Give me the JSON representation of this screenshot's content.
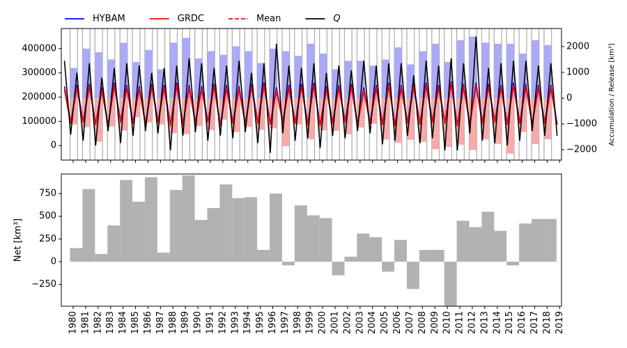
{
  "chart_data": [
    {
      "type": "line",
      "x": [
        1979.3,
        1979.8,
        1980.3,
        1980.8,
        1981.3,
        1981.8,
        1982.3,
        1982.8,
        1983.3,
        1983.8,
        1984.3,
        1984.8,
        1985.3,
        1985.8,
        1986.3,
        1986.8,
        1987.3,
        1987.8,
        1988.3,
        1988.8,
        1989.3,
        1989.8,
        1990.3,
        1990.8,
        1991.3,
        1991.8,
        1992.3,
        1992.8,
        1993.3,
        1993.8,
        1994.3,
        1994.8,
        1995.3,
        1995.8,
        1996.3,
        1996.8,
        1997.3,
        1997.8,
        1998.3,
        1998.8,
        1999.3,
        1999.8,
        2000.3,
        2000.8,
        2001.3,
        2001.8,
        2002.3,
        2002.8,
        2003.3,
        2003.8,
        2004.3,
        2004.8,
        2005.3,
        2005.8,
        2006.3,
        2006.8,
        2007.3,
        2007.8,
        2008.3,
        2008.8,
        2009.3,
        2009.8,
        2010.3,
        2010.8,
        2011.3,
        2011.8,
        2012.3,
        2012.8,
        2013.3,
        2013.8,
        2014.3,
        2014.8,
        2015.3,
        2015.8,
        2016.3,
        2016.8,
        2017.3,
        2017.8,
        2018.3,
        2018.8
      ],
      "xlim": [
        1979.05,
        2019.15
      ],
      "ylim": [
        -60000,
        483000
      ],
      "yticks": [
        0,
        100000,
        200000,
        300000,
        400000
      ],
      "y2lim": [
        -2400,
        2700
      ],
      "y2ticks": [
        {
          "value": -2000,
          "label": "−2000"
        },
        {
          "value": -1000,
          "label": "−1000"
        },
        0,
        1000,
        2000
      ],
      "y2label": "Accumulation / Release [km³]",
      "series": [
        {
          "name": "HYBAM",
          "color": "#0000ff",
          "values": [
            245000,
            95000,
            250000,
            100000,
            255000,
            90000,
            240000,
            85000,
            260000,
            100000,
            250000,
            95000,
            245000,
            90000,
            255000,
            100000,
            250000,
            85000,
            260000,
            90000,
            250000,
            95000,
            245000,
            100000,
            255000,
            85000,
            250000,
            95000,
            245000,
            90000,
            255000,
            95000,
            260000,
            90000,
            240000,
            100000,
            250000,
            95000,
            255000,
            90000,
            260000,
            85000,
            245000,
            95000,
            250000,
            100000,
            255000,
            90000,
            240000,
            95000,
            250000,
            90000,
            260000,
            85000,
            250000,
            95000,
            255000,
            90000,
            260000,
            100000,
            250000,
            95000,
            265000,
            85000,
            255000,
            90000,
            260000,
            95000,
            255000,
            100000,
            250000,
            90000,
            260000,
            95000,
            255000,
            90000,
            250000,
            95000,
            250000,
            90000
          ]
        },
        {
          "name": "GRDC",
          "color": "#ff0000",
          "values": [
            230000,
            90000,
            235000,
            95000,
            240000,
            85000,
            225000,
            80000,
            245000,
            95000,
            235000,
            90000,
            230000,
            85000,
            240000,
            95000,
            235000,
            80000,
            245000,
            85000,
            235000,
            90000,
            230000,
            95000,
            240000,
            80000,
            235000,
            90000,
            230000,
            85000,
            240000,
            90000,
            245000,
            85000,
            225000,
            95000,
            235000,
            90000,
            240000,
            85000,
            245000,
            80000,
            230000,
            90000,
            235000,
            95000,
            240000,
            85000,
            225000,
            90000,
            235000,
            85000,
            245000,
            80000,
            235000,
            90000,
            240000,
            85000,
            245000,
            95000,
            235000,
            90000,
            250000,
            80000,
            240000,
            85000,
            245000,
            90000,
            240000,
            95000,
            235000,
            85000,
            245000,
            90000,
            240000,
            85000,
            235000,
            90000,
            235000,
            85000
          ]
        },
        {
          "name": "Mean",
          "color": "#ff0000",
          "dashed": true,
          "values": [
            237500,
            92500,
            242500,
            97500,
            247500,
            87500,
            232500,
            82500,
            252500,
            97500,
            242500,
            92500,
            237500,
            87500,
            247500,
            97500,
            242500,
            82500,
            252500,
            87500,
            242500,
            92500,
            237500,
            97500,
            247500,
            82500,
            242500,
            92500,
            237500,
            87500,
            247500,
            92500,
            252500,
            87500,
            232500,
            97500,
            242500,
            92500,
            247500,
            87500,
            252500,
            82500,
            237500,
            92500,
            242500,
            97500,
            247500,
            87500,
            232500,
            92500,
            242500,
            87500,
            252500,
            82500,
            242500,
            92500,
            247500,
            87500,
            252500,
            97500,
            242500,
            92500,
            257500,
            82500,
            247500,
            87500,
            252500,
            92500,
            247500,
            97500,
            242500,
            87500,
            252500,
            92500,
            247500,
            87500,
            242500,
            92500,
            242500,
            87500
          ]
        },
        {
          "name": "Q",
          "color": "#000000",
          "italic": true,
          "values": [
            350000,
            45000,
            300000,
            20000,
            340000,
            0,
            280000,
            60000,
            320000,
            10000,
            340000,
            40000,
            330000,
            60000,
            300000,
            50000,
            320000,
            -20000,
            330000,
            40000,
            360000,
            55000,
            340000,
            20000,
            320000,
            40000,
            330000,
            30000,
            350000,
            55000,
            300000,
            10000,
            340000,
            -30000,
            420000,
            50000,
            330000,
            20000,
            320000,
            30000,
            340000,
            -10000,
            300000,
            40000,
            330000,
            30000,
            310000,
            60000,
            350000,
            50000,
            330000,
            5000,
            340000,
            20000,
            340000,
            40000,
            290000,
            10000,
            350000,
            30000,
            330000,
            -20000,
            360000,
            -20000,
            340000,
            50000,
            450000,
            20000,
            320000,
            10000,
            340000,
            0,
            350000,
            20000,
            350000,
            60000,
            330000,
            40000,
            340000,
            40000
          ]
        }
      ],
      "bar_x": [
        1980,
        1981,
        1982,
        1983,
        1984,
        1985,
        1986,
        1987,
        1988,
        1989,
        1990,
        1991,
        1992,
        1993,
        1994,
        1995,
        1996,
        1997,
        1998,
        1999,
        2000,
        2001,
        2002,
        2003,
        2004,
        2005,
        2006,
        2007,
        2008,
        2009,
        2010,
        2011,
        2012,
        2013,
        2014,
        2015,
        2016,
        2017,
        2018
      ],
      "bar_series": [
        {
          "axis": "y2",
          "color": "#aaaaf6",
          "values": [
            1170,
            1920,
            1780,
            1500,
            2150,
            1400,
            1870,
            1120,
            2150,
            2340,
            1540,
            1820,
            1680,
            2010,
            1820,
            1360,
            1920,
            1820,
            1640,
            2110,
            1730,
            1120,
            1450,
            1450,
            1260,
            1500,
            1970,
            1310,
            1820,
            2110,
            1400,
            2250,
            2390,
            2150,
            2110,
            2110,
            1730,
            2250,
            2060
          ]
        },
        {
          "axis": "y2",
          "color": "#f6aaaa",
          "values": [
            -1020,
            -1120,
            -1690,
            -1100,
            -1250,
            -740,
            -940,
            -1020,
            -1360,
            -1390,
            -1080,
            -1230,
            -830,
            -1310,
            -1110,
            -1230,
            -1170,
            -1860,
            -1020,
            -1600,
            -1250,
            -1270,
            -1400,
            -1140,
            -990,
            -1600,
            -1730,
            -1610,
            -1690,
            -1980,
            -1890,
            -1800,
            -2010,
            -1600,
            -1770,
            -2150,
            -1310,
            -1780,
            -1590
          ]
        }
      ],
      "legend": "top-left"
    },
    {
      "type": "bar",
      "x": [
        1980,
        1981,
        1982,
        1983,
        1984,
        1985,
        1986,
        1987,
        1988,
        1989,
        1990,
        1991,
        1992,
        1993,
        1994,
        1995,
        1996,
        1997,
        1998,
        1999,
        2000,
        2001,
        2002,
        2003,
        2004,
        2005,
        2006,
        2007,
        2008,
        2009,
        2010,
        2011,
        2012,
        2013,
        2014,
        2015,
        2016,
        2017,
        2018
      ],
      "values": [
        150,
        800,
        85,
        400,
        900,
        660,
        930,
        100,
        790,
        950,
        460,
        590,
        850,
        700,
        710,
        130,
        750,
        -40,
        620,
        510,
        480,
        -150,
        55,
        310,
        270,
        -110,
        240,
        -300,
        130,
        130,
        -490,
        450,
        380,
        550,
        340,
        -40,
        420,
        470,
        470
      ],
      "color": "#b2b2b2",
      "xlim": [
        1979.05,
        2019.15
      ],
      "xticks": [
        1980,
        1981,
        1982,
        1983,
        1984,
        1985,
        1986,
        1987,
        1988,
        1989,
        1990,
        1991,
        1992,
        1993,
        1994,
        1995,
        1996,
        1997,
        1998,
        1999,
        2000,
        2001,
        2002,
        2003,
        2004,
        2005,
        2006,
        2007,
        2008,
        2009,
        2010,
        2011,
        2012,
        2013,
        2014,
        2015,
        2016,
        2017,
        2018,
        2019
      ],
      "ylim": [
        -490,
        965
      ],
      "yticks": [
        {
          "value": -250,
          "label": "−250"
        },
        0,
        250,
        500,
        750
      ],
      "ylabel": "Net [km³]"
    }
  ]
}
